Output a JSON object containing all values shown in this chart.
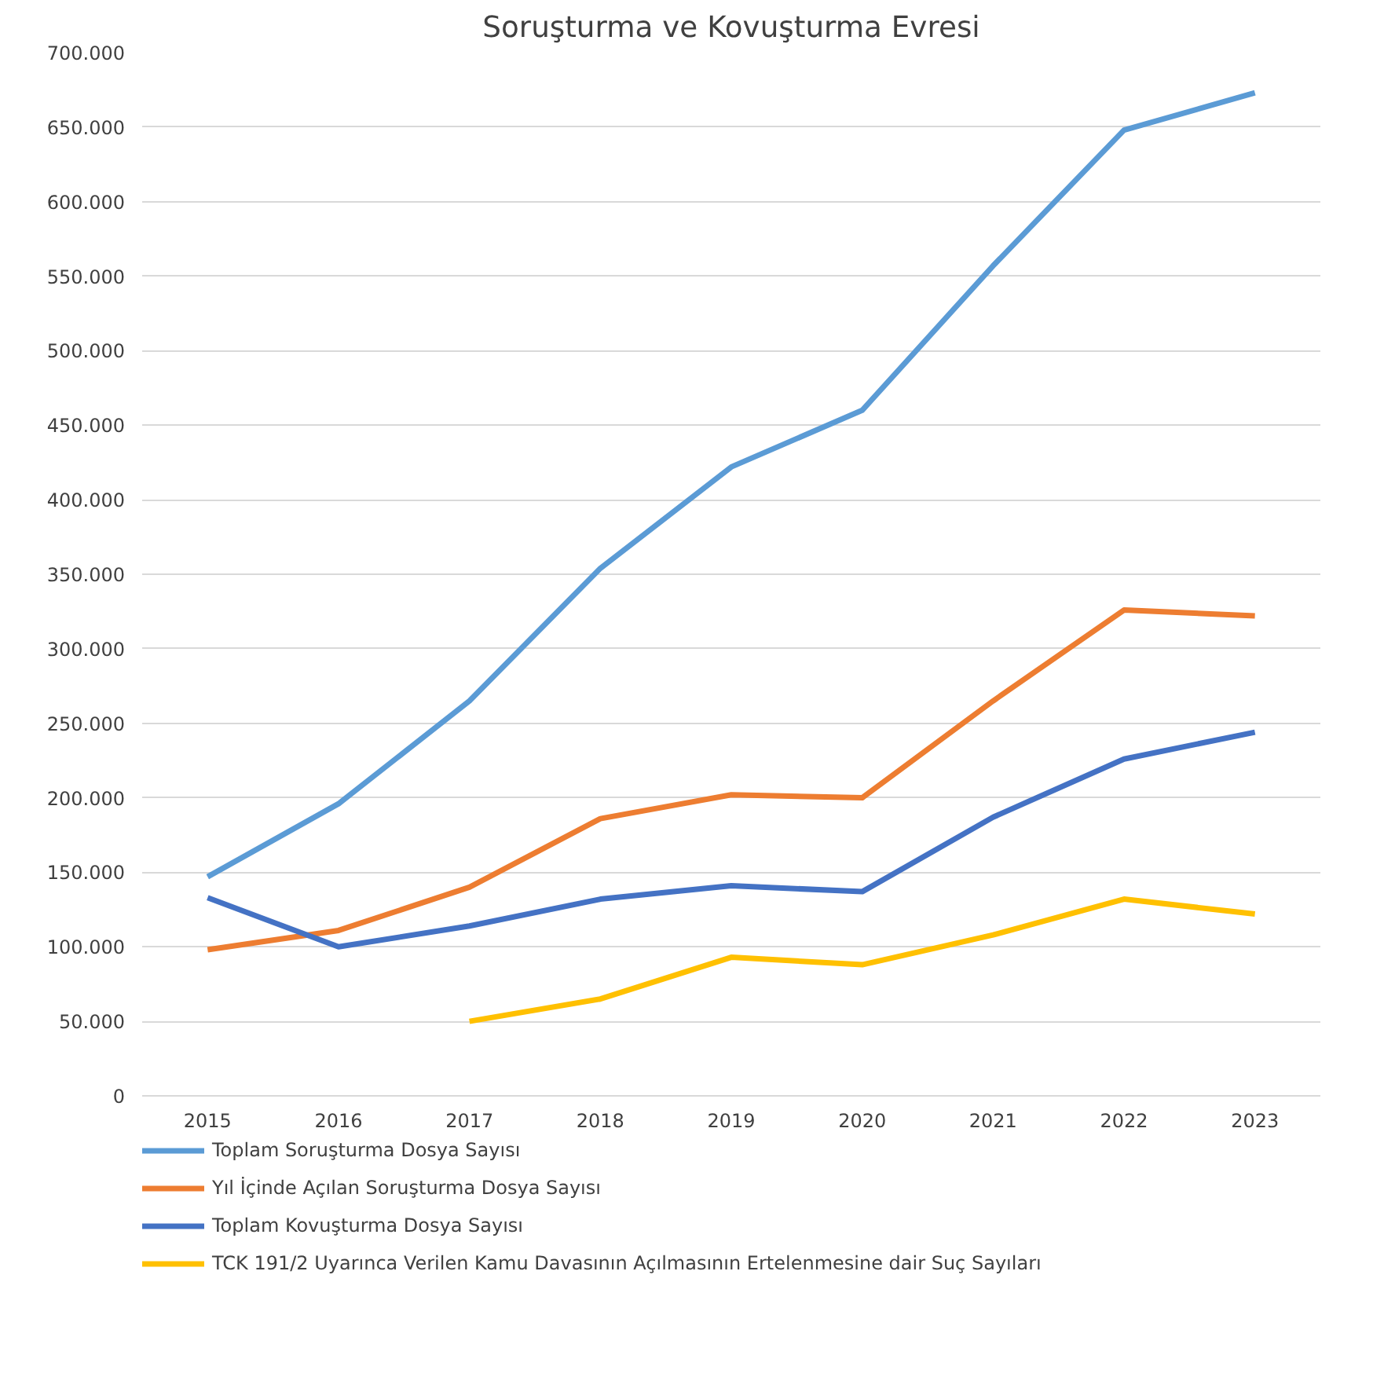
{
  "chart_data": {
    "type": "line",
    "title": "Soruşturma ve Kovuşturma Evresi",
    "categories": [
      "2015",
      "2016",
      "2017",
      "2018",
      "2019",
      "2020",
      "2021",
      "2022",
      "2023"
    ],
    "series": [
      {
        "name": "Toplam Soruşturma Dosya Sayısı",
        "color": "#5b9bd5",
        "values": [
          147000,
          196000,
          265000,
          354000,
          422000,
          460000,
          557000,
          648000,
          673000
        ]
      },
      {
        "name": "Yıl İçinde Açılan Soruşturma Dosya Sayısı",
        "color": "#ed7d31",
        "values": [
          98000,
          111000,
          140000,
          186000,
          202000,
          200000,
          265000,
          326000,
          322000
        ]
      },
      {
        "name": "Toplam Kovuşturma Dosya Sayısı",
        "color": "#4472c4",
        "values": [
          133000,
          100000,
          114000,
          132000,
          141000,
          137000,
          187000,
          226000,
          244000
        ]
      },
      {
        "name": "TCK 191/2 Uyarınca Verilen Kamu Davasının Açılmasının Ertelenmesine dair Suç Sayıları",
        "color": "#ffc000",
        "values": [
          null,
          null,
          50000,
          65000,
          93000,
          88000,
          108000,
          132000,
          122000
        ]
      }
    ],
    "ylim": [
      0,
      700000
    ],
    "yticks": [
      {
        "value": 0,
        "label": "0"
      },
      {
        "value": 50000,
        "label": "50.000"
      },
      {
        "value": 100000,
        "label": "100.000"
      },
      {
        "value": 150000,
        "label": "150.000"
      },
      {
        "value": 200000,
        "label": "200.000"
      },
      {
        "value": 250000,
        "label": "250.000"
      },
      {
        "value": 300000,
        "label": "300.000"
      },
      {
        "value": 350000,
        "label": "350.000"
      },
      {
        "value": 400000,
        "label": "400.000"
      },
      {
        "value": 450000,
        "label": "450.000"
      },
      {
        "value": 500000,
        "label": "500.000"
      },
      {
        "value": 550000,
        "label": "550.000"
      },
      {
        "value": 600000,
        "label": "600.000"
      },
      {
        "value": 650000,
        "label": "650.000"
      },
      {
        "value": 700000,
        "label": "700.000"
      }
    ],
    "grid": "y",
    "legend": "bottom",
    "marker": "none",
    "line_style": "solid"
  }
}
